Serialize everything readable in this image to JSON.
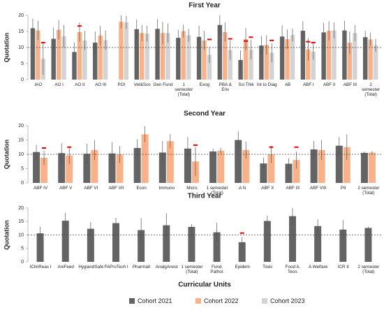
{
  "legend": {
    "title": "Curricular Units"
  },
  "chart_data": [
    {
      "type": "bar",
      "title": "First Year",
      "y_label": "Quotation",
      "ylim": [
        0,
        20
      ],
      "yticks": [
        0,
        5,
        10,
        15,
        20
      ],
      "reference_line": 10,
      "categories": [
        "IAO",
        "AO I",
        "AO II",
        "AO III",
        "POI",
        "Vet&Soc",
        "Gen Fund",
        "1 semester (Total)",
        "Exog",
        "PBA & Env",
        "Sci Thik",
        "Int to Diag",
        "AB",
        "ABF I",
        "ABF II",
        "ABF III",
        "2 semester (Total)"
      ],
      "series": [
        {
          "name": "Cohort 2021",
          "color": "#646464",
          "values": [
            16,
            12.7,
            8.6,
            11.5,
            null,
            15.7,
            15.8,
            13,
            13.3,
            17,
            6.1,
            10.6,
            13.4,
            15.2,
            14.7,
            15.3,
            13.2
          ],
          "errors": [
            3,
            3.5,
            3,
            3.5,
            null,
            3,
            3,
            2.5,
            3.5,
            3,
            3,
            3,
            3.5,
            3,
            3,
            3,
            2
          ],
          "markers": [
            null,
            null,
            null,
            null,
            null,
            null,
            null,
            null,
            null,
            null,
            null,
            null,
            null,
            null,
            null,
            null,
            null
          ]
        },
        {
          "name": "Cohort 2022",
          "color": "#f8b189",
          "values": [
            15.3,
            15.5,
            14.8,
            13.7,
            18,
            14.5,
            14.5,
            15.1,
            12.2,
            14.8,
            12.6,
            10.8,
            12.6,
            9.4,
            15.2,
            11.5,
            12.5
          ],
          "errors": [
            3,
            3,
            3,
            3,
            2,
            2.5,
            3.5,
            2,
            3,
            3,
            3.5,
            3,
            3,
            3.5,
            3,
            3.5,
            2
          ],
          "markers": [
            null,
            null,
            16.7,
            null,
            null,
            null,
            null,
            null,
            null,
            null,
            12,
            null,
            null,
            11.8,
            null,
            null,
            null
          ]
        },
        {
          "name": "Cohort 2023",
          "color": "#d3d3d3",
          "values": [
            6.5,
            13.5,
            12.2,
            12.3,
            17.8,
            14.3,
            14.5,
            13.8,
            7.7,
            9.2,
            9.3,
            8.4,
            13.9,
            8.7,
            15.3,
            14.5,
            10.7
          ],
          "errors": [
            5,
            3.5,
            3,
            3,
            2,
            2.5,
            3,
            2,
            2.5,
            3,
            3,
            3,
            2,
            2.5,
            2.5,
            2.5,
            2
          ],
          "markers": [
            11.5,
            null,
            null,
            null,
            null,
            null,
            null,
            null,
            12.5,
            12.7,
            13.2,
            12.2,
            null,
            11.5,
            null,
            null,
            null
          ]
        }
      ]
    },
    {
      "type": "bar",
      "title": "Second Year",
      "y_label": "Quotation",
      "ylim": [
        0,
        20
      ],
      "yticks": [
        0,
        5,
        10,
        15,
        20
      ],
      "reference_line": 10,
      "categories": [
        "ABF IV",
        "ABF V",
        "ABF VI",
        "ABF VII",
        "Econ",
        "Immuno",
        "Micro",
        "1 semester (Total)",
        "A N",
        "ABF X",
        "ABF IX",
        "ABF VIII",
        "PII",
        "2 semester (Total)"
      ],
      "series": [
        {
          "name": "Cohort 2021",
          "color": "#646464",
          "values": [
            10.8,
            10.4,
            10.2,
            10.3,
            12.2,
            10.6,
            12,
            11,
            15,
            6.8,
            6.7,
            11.7,
            13,
            10.5
          ],
          "errors": [
            2.5,
            3.5,
            3.5,
            4,
            3,
            4,
            4,
            1,
            3,
            2,
            2,
            3,
            3,
            0.5
          ],
          "markers": [
            null,
            null,
            null,
            null,
            null,
            null,
            null,
            null,
            null,
            null,
            null,
            null,
            null,
            null
          ]
        },
        {
          "name": "Cohort 2022",
          "color": "#f8b189",
          "values": [
            8.8,
            9.6,
            11.5,
            9.9,
            17,
            14.6,
            7.5,
            11.3,
            11.5,
            10,
            8,
            11.5,
            12.5,
            10.6
          ],
          "errors": [
            2.5,
            3,
            3.5,
            3,
            2.8,
            2.5,
            5,
            1,
            3,
            3,
            3,
            3.5,
            4.5,
            0.5
          ],
          "markers": [
            12.2,
            12.5,
            null,
            null,
            null,
            null,
            13.2,
            null,
            null,
            12.5,
            12.5,
            null,
            null,
            null
          ]
        }
      ]
    },
    {
      "type": "bar",
      "title": "Third Year",
      "y_label": "Quotation",
      "ylim": [
        0,
        20
      ],
      "yticks": [
        0,
        5,
        10,
        15,
        20
      ],
      "reference_line": 10,
      "categories": [
        "IClinReas I",
        "AniFeed",
        "HygiandSafe",
        "FAProTech I",
        "PharmaII",
        "AnalgAnest",
        "1 semester (Total)",
        "Fund. Pathol.",
        "Epidem",
        "Toxic",
        "Food A. Tecn.",
        "A Welfare",
        "ICR II",
        "2 semester (Total)"
      ],
      "series": [
        {
          "name": "Cohort 2021",
          "color": "#646464",
          "values": [
            10.6,
            15.3,
            12.3,
            14.4,
            11.8,
            13.6,
            13,
            11,
            7.3,
            15.2,
            17,
            13.3,
            12,
            12.6
          ],
          "errors": [
            2.5,
            3,
            2.5,
            2,
            4.5,
            4.5,
            1,
            3.5,
            2,
            2,
            3,
            2.5,
            3.5,
            0.5
          ],
          "markers": [
            null,
            null,
            null,
            null,
            null,
            null,
            null,
            null,
            10.7,
            null,
            null,
            null,
            null,
            null
          ]
        }
      ]
    }
  ]
}
